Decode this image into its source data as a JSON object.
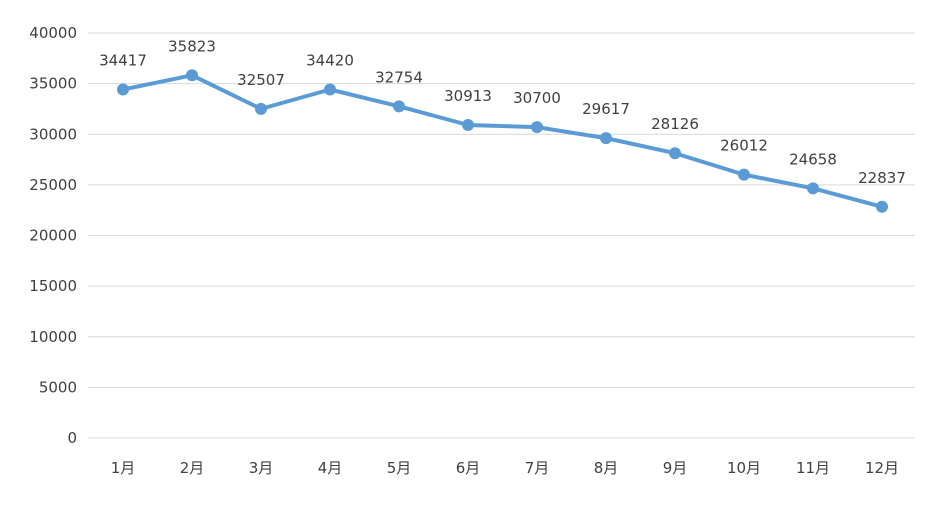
{
  "chart_data": {
    "type": "line",
    "title": "",
    "xlabel": "",
    "ylabel": "",
    "categories": [
      "1月",
      "2月",
      "3月",
      "4月",
      "5月",
      "6月",
      "7月",
      "8月",
      "9月",
      "10月",
      "11月",
      "12月"
    ],
    "series": [
      {
        "values": [
          34417,
          35823,
          32507,
          34420,
          32754,
          30913,
          30700,
          29617,
          28126,
          26012,
          24658,
          22837
        ],
        "data_labels": [
          "34417",
          "35823",
          "32507",
          "34420",
          "32754",
          "30913",
          "30700",
          "29617",
          "28126",
          "26012",
          "24658",
          "22837"
        ],
        "color": "#5b9bd5",
        "marker": "circle"
      }
    ],
    "ylim": [
      0,
      40000
    ],
    "y_ticks": [
      "0",
      "5000",
      "10000",
      "15000",
      "20000",
      "25000",
      "30000",
      "35000",
      "40000"
    ],
    "y_tick_values": [
      0,
      5000,
      10000,
      15000,
      20000,
      25000,
      30000,
      35000,
      40000
    ],
    "grid": true,
    "legend": "none",
    "colors": {
      "grid": "#d9d9d9",
      "text": "#404040",
      "series": "#5b9bd5"
    }
  }
}
